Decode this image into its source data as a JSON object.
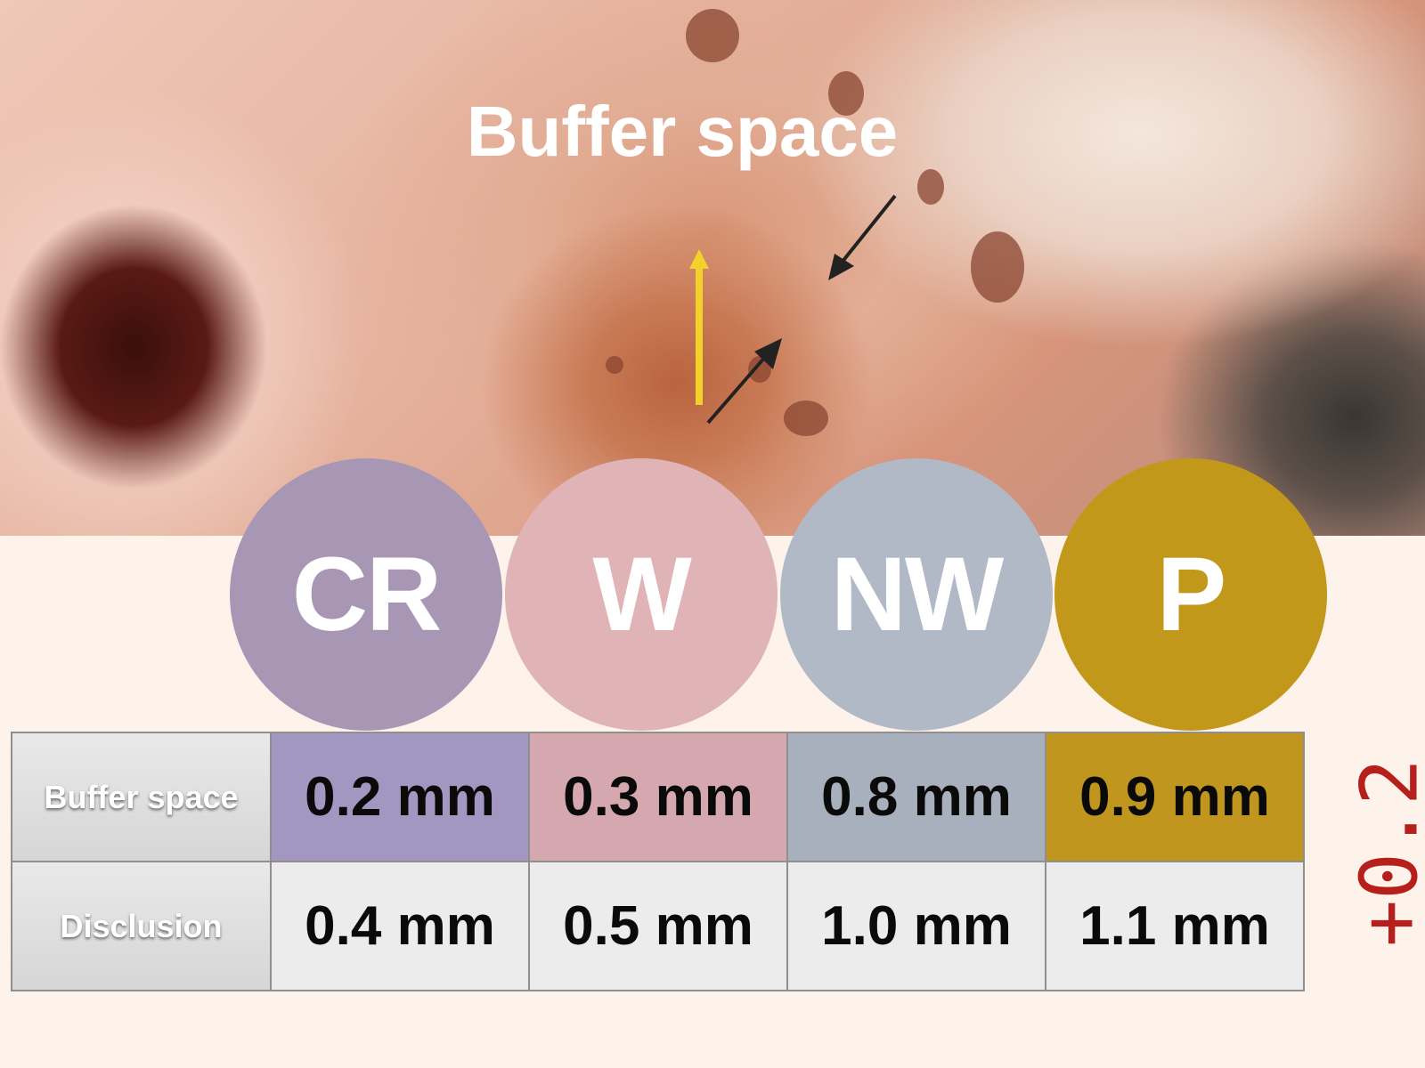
{
  "slide": {
    "title": "Buffer space",
    "photo_alt": "bone-photo",
    "badges": [
      {
        "label": "CR",
        "color": "#a896b5"
      },
      {
        "label": "W",
        "color": "#e0b3b6"
      },
      {
        "label": "NW",
        "color": "#b1b9c6"
      },
      {
        "label": "P",
        "color": "#c2981b"
      }
    ],
    "table": {
      "rows": [
        {
          "header": "Buffer space",
          "values": [
            "0.2 mm",
            "0.3 mm",
            "0.8 mm",
            "0.9 mm"
          ]
        },
        {
          "header": "Disclusion",
          "values": [
            "0.4 mm",
            "0.5 mm",
            "1.0 mm",
            "1.1 mm"
          ]
        }
      ],
      "row1_colors": [
        "#a297c0",
        "#d5a8af",
        "#a8b0bd",
        "#c0961f"
      ]
    },
    "annotation": "+0.2"
  }
}
